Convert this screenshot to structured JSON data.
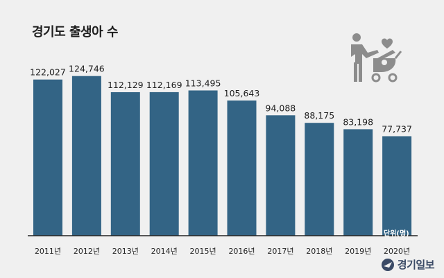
{
  "page": {
    "title": "경기도 출생아 수",
    "unit_note": "단위(명)",
    "logo_text": "경기일보",
    "bar_color": "#336485",
    "background": "#f0f0f0"
  },
  "chart_data": {
    "type": "bar",
    "title": "경기도 출생아 수",
    "categories": [
      "2011년",
      "2012년",
      "2013년",
      "2014년",
      "2015년",
      "2016년",
      "2017년",
      "2018년",
      "2019년",
      "2020년"
    ],
    "values": [
      122027,
      124746,
      112129,
      112169,
      113495,
      105643,
      94088,
      88175,
      83198,
      77737
    ],
    "value_labels": [
      "122,027",
      "124,746",
      "112,129",
      "112,169",
      "113,495",
      "105,643",
      "94,088",
      "88,175",
      "83,198",
      "77,737"
    ],
    "xlabel": "",
    "ylabel": "",
    "ylim": [
      0,
      130000
    ],
    "grid": false
  }
}
